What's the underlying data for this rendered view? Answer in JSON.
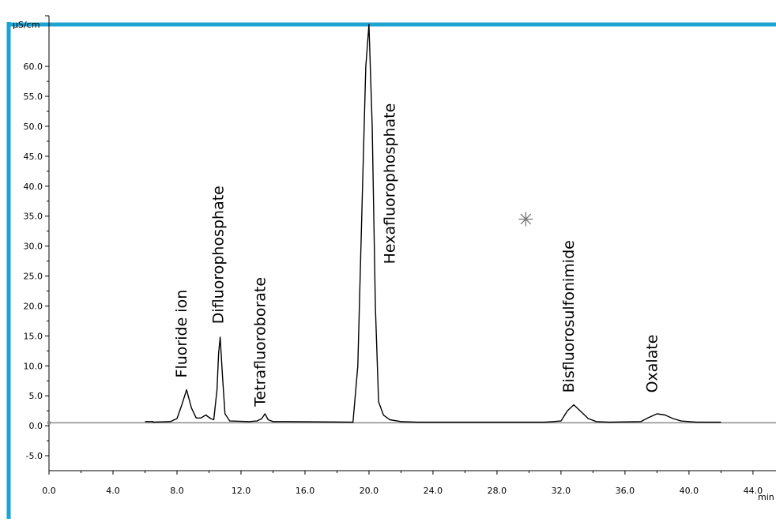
{
  "chart_data": {
    "type": "line",
    "y_unit": "µS/cm",
    "x_unit": "min",
    "xlim": [
      0,
      44.5
    ],
    "ylim": [
      -7.5,
      67
    ],
    "x_ticks": [
      0,
      4,
      8,
      12,
      16,
      20,
      24,
      28,
      32,
      36,
      40,
      44
    ],
    "x_tick_labels": [
      "0.0",
      "4.0",
      "8.0",
      "12.0",
      "16.0",
      "20.0",
      "24.0",
      "28.0",
      "32.0",
      "36.0",
      "40.0",
      "44.0"
    ],
    "y_ticks": [
      -5,
      0,
      5,
      10,
      15,
      20,
      25,
      30,
      35,
      40,
      45,
      50,
      55,
      60
    ],
    "y_tick_labels": [
      "-5.0",
      "0.0",
      "5.0",
      "10.0",
      "15.0",
      "20.0",
      "25.0",
      "30.0",
      "35.0",
      "40.0",
      "45.0",
      "50.0",
      "55.0",
      "60.0"
    ],
    "baseline": 0.5,
    "grid": false,
    "series": [
      {
        "color": "#000000",
        "x": [
          6.0,
          6.5,
          6.5,
          7.5,
          7.6,
          8.0,
          8.3,
          8.6,
          8.9,
          9.2,
          9.5,
          9.8,
          10.1,
          10.3,
          10.5,
          10.6,
          10.7,
          10.85,
          11.0,
          11.3,
          12.5,
          13.0,
          13.3,
          13.5,
          13.7,
          14.0,
          14.5,
          14.7,
          15.0,
          19.0,
          19.3,
          19.6,
          19.8,
          20.0,
          20.2,
          20.4,
          20.6,
          20.9,
          21.3,
          22.0,
          23.0,
          24.0,
          31.0,
          32.0,
          32.4,
          32.8,
          33.2,
          33.7,
          34.2,
          35.0,
          37.0,
          37.5,
          38.0,
          38.5,
          39.0,
          39.5,
          40.5,
          42.0
        ],
        "y": [
          0.7,
          0.7,
          0.6,
          0.7,
          0.7,
          1.2,
          3.5,
          6.0,
          3.0,
          1.3,
          1.3,
          1.8,
          1.2,
          1.0,
          6.0,
          12.0,
          14.8,
          8.0,
          2.0,
          0.8,
          0.7,
          0.8,
          1.2,
          2.0,
          1.0,
          0.7,
          0.7,
          0.7,
          0.7,
          0.6,
          10.0,
          40.0,
          60.0,
          67.0,
          50.0,
          20.0,
          4.0,
          1.8,
          1.0,
          0.7,
          0.6,
          0.6,
          0.6,
          0.8,
          2.5,
          3.5,
          2.5,
          1.2,
          0.7,
          0.6,
          0.7,
          1.4,
          2.0,
          1.8,
          1.2,
          0.8,
          0.6,
          0.6
        ]
      }
    ],
    "annotations": [
      {
        "text": "Fluoride ion",
        "x": 8.6,
        "y": 8.0
      },
      {
        "text": "Difluorophosphate",
        "x": 10.9,
        "y": 17.0
      },
      {
        "text": "Tetrafluoroborate",
        "x": 13.5,
        "y": 3.2
      },
      {
        "text": "Hexafluorophosphate",
        "x": 21.6,
        "y": 27.0
      },
      {
        "text": "Bisfluorosulfonimide",
        "x": 32.8,
        "y": 5.5
      },
      {
        "text": "Oxalate",
        "x": 38.0,
        "y": 5.5
      }
    ],
    "marker": {
      "symbol": "asterisk",
      "x": 29.8,
      "y": 34.5
    }
  }
}
